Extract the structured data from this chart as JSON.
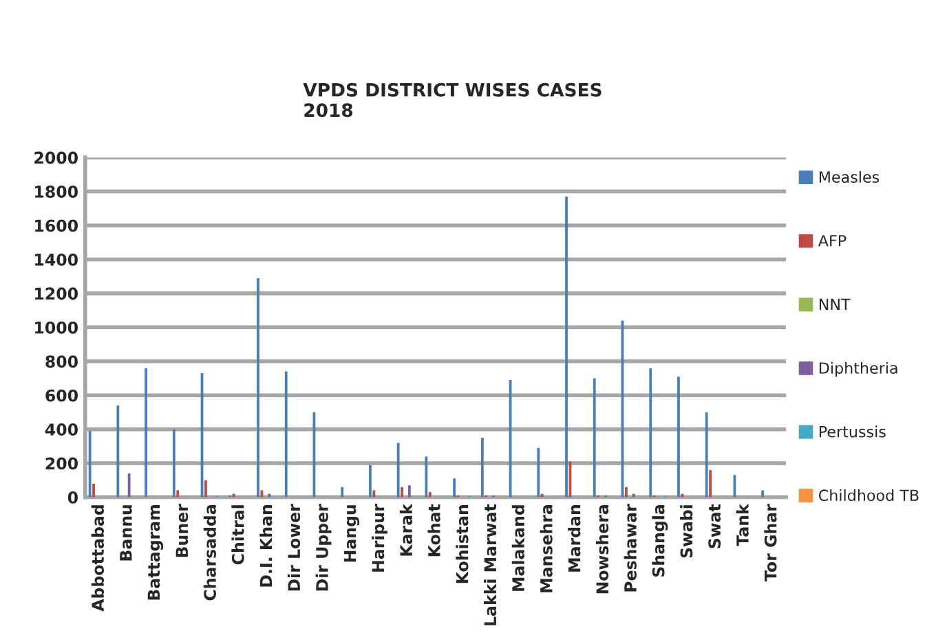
{
  "chart_data": {
    "type": "bar",
    "title": "VPDS DISTRICT WISES CASES\n2018",
    "categories": [
      "Abbottabad",
      "Bannu",
      "Battagram",
      "Buner",
      "Charsadda",
      "Chitral",
      "D.I. Khan",
      "Dir Lower",
      "Dir Upper",
      "Hangu",
      "Haripur",
      "Karak",
      "Kohat",
      "Kohistan",
      "Lakki Marwat",
      "Malakand",
      "Mansehra",
      "Mardan",
      "Nowshera",
      "Peshawar",
      "Shangla",
      "Swabi",
      "Swat",
      "Tank",
      "Tor Ghar"
    ],
    "series": [
      {
        "name": "Measles",
        "color": "#4a7ebb",
        "values": [
          390,
          540,
          760,
          400,
          730,
          10,
          1290,
          740,
          500,
          60,
          190,
          320,
          240,
          110,
          350,
          690,
          290,
          1770,
          700,
          1040,
          760,
          710,
          500,
          130,
          40
        ]
      },
      {
        "name": "AFP",
        "color": "#be4b48",
        "values": [
          80,
          null,
          null,
          40,
          100,
          20,
          40,
          null,
          null,
          null,
          40,
          60,
          30,
          10,
          10,
          null,
          20,
          210,
          10,
          60,
          10,
          20,
          160,
          null,
          null
        ]
      },
      {
        "name": "NNT",
        "color": "#98b954",
        "values": [
          null,
          null,
          null,
          null,
          null,
          null,
          10,
          null,
          null,
          null,
          null,
          null,
          null,
          null,
          null,
          null,
          null,
          null,
          null,
          null,
          null,
          null,
          null,
          null,
          null
        ]
      },
      {
        "name": "Diphtheria",
        "color": "#7d5fa0",
        "values": [
          null,
          140,
          null,
          null,
          null,
          null,
          20,
          null,
          null,
          null,
          null,
          70,
          null,
          null,
          10,
          null,
          null,
          null,
          10,
          20,
          null,
          null,
          null,
          null,
          null
        ]
      },
      {
        "name": "Pertussis",
        "color": "#46aac5",
        "values": [
          null,
          null,
          null,
          null,
          10,
          null,
          null,
          null,
          null,
          null,
          null,
          null,
          null,
          10,
          null,
          null,
          null,
          null,
          null,
          null,
          10,
          null,
          null,
          null,
          null
        ]
      },
      {
        "name": "Childhood TB",
        "color": "#f69240",
        "values": [
          null,
          null,
          null,
          null,
          null,
          null,
          null,
          null,
          null,
          null,
          null,
          null,
          null,
          null,
          10,
          null,
          null,
          null,
          null,
          null,
          10,
          null,
          null,
          null,
          null
        ]
      }
    ],
    "ylim": [
      0,
      2000
    ],
    "yticks": [
      0,
      200,
      400,
      600,
      800,
      1000,
      1200,
      1400,
      1600,
      1800,
      2000
    ],
    "grid": "y",
    "legend": "right"
  }
}
